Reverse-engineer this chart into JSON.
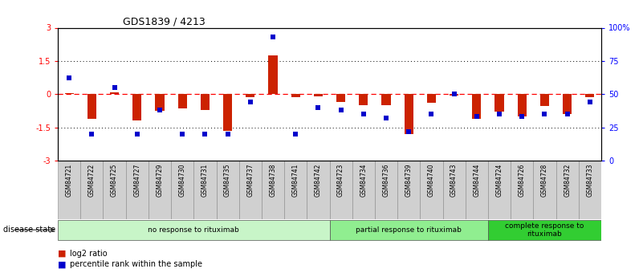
{
  "title": "GDS1839 / 4213",
  "samples": [
    "GSM84721",
    "GSM84722",
    "GSM84725",
    "GSM84727",
    "GSM84729",
    "GSM84730",
    "GSM84731",
    "GSM84735",
    "GSM84737",
    "GSM84738",
    "GSM84741",
    "GSM84742",
    "GSM84723",
    "GSM84734",
    "GSM84736",
    "GSM84739",
    "GSM84740",
    "GSM84743",
    "GSM84744",
    "GSM84724",
    "GSM84726",
    "GSM84728",
    "GSM84732",
    "GSM84733"
  ],
  "log2_ratio": [
    0.05,
    -1.1,
    0.07,
    -1.2,
    -0.75,
    -0.65,
    -0.7,
    -1.65,
    -0.15,
    1.75,
    -0.15,
    -0.08,
    -0.35,
    -0.5,
    -0.5,
    -1.8,
    -0.4,
    -0.05,
    -1.1,
    -0.8,
    -1.0,
    -0.55,
    -0.9,
    -0.15
  ],
  "percentile_rank": [
    62,
    20,
    55,
    20,
    38,
    20,
    20,
    20,
    44,
    93,
    20,
    40,
    38,
    35,
    32,
    22,
    35,
    50,
    33,
    35,
    33,
    35,
    35,
    44
  ],
  "groups": [
    {
      "label": "no response to rituximab",
      "start": 0,
      "end": 12,
      "color": "#c8f5c8"
    },
    {
      "label": "partial response to rituximab",
      "start": 12,
      "end": 19,
      "color": "#90ee90"
    },
    {
      "label": "complete response to\nrituximab",
      "start": 19,
      "end": 24,
      "color": "#32cd32"
    }
  ],
  "bar_color": "#cc2200",
  "square_color": "#0000cc",
  "ylim_left": [
    -3,
    3
  ],
  "ylim_right": [
    0,
    100
  ],
  "bg_color": "#ffffff",
  "label_bg_color": "#d0d0d0",
  "legend_items": [
    "log2 ratio",
    "percentile rank within the sample"
  ],
  "disease_state_label": "disease state"
}
